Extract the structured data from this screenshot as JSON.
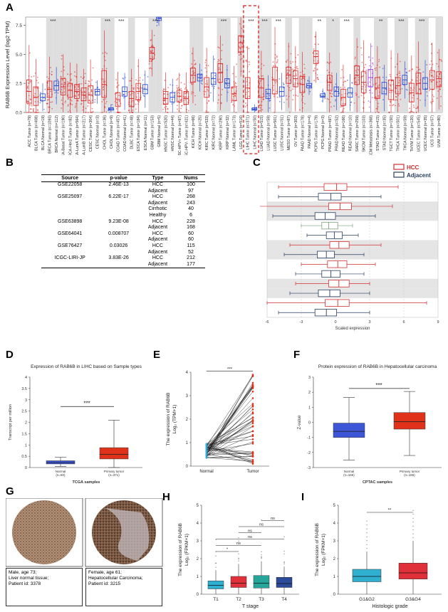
{
  "figure": {
    "panel_labels": {
      "A": "A",
      "B": "B",
      "C": "C",
      "D": "D",
      "E": "E",
      "F": "F",
      "G": "G",
      "H": "H",
      "I": "I"
    }
  },
  "panelA": {
    "ylabel": "RAB6B Expression Level (log2 TPM)",
    "yticks": [
      "0.0",
      "2.5",
      "5.0",
      "7.5"
    ],
    "categories": [
      "ACC Tumor (n=79)",
      "BLCA Tumor (n=408)",
      "BLCA Normal (n=19)",
      "BRCA Tumor (n=1093)",
      "BRCA Normal (n=112)",
      "BRCA-Basal Tumor (n=190)",
      "BRCA-Her2 Tumor (n=82)",
      "BRCA-LumA Tumor (n=564)",
      "BRCA-LumB Tumor (n=217)",
      "CESC Tumor (n=304)",
      "CESC Normal (n=3)",
      "CHOL Tumor (n=36)",
      "CHOL Normal (n=9)",
      "COAD Tumor (n=457)",
      "COAD Normal (n=41)",
      "DLBC Tumor (n=48)",
      "ESCA Tumor (n=184)",
      "ESCA Normal (n=11)",
      "GBM Tumor (n=153)",
      "GBM Normal (n=5)",
      "HNSC Tumor (n=520)",
      "HNSC Normal (n=44)",
      "HNSC-HPV+ Tumor (n=97)",
      "HNSC-HPV- Tumor (n=421)",
      "KICH Tumor (n=66)",
      "KICH Normal (n=25)",
      "KIRC Tumor (n=533)",
      "KIRC Normal (n=72)",
      "KIRP Tumor (n=290)",
      "KIRP Normal (n=32)",
      "LAML Tumor (n=173)",
      "LGG Tumor (n=516)",
      "LIHC Tumor (n=371)",
      "LIHC Normal (n=50)",
      "LUAD Tumor (n=515)",
      "LUAD Normal (n=59)",
      "LUSC Tumor (n=501)",
      "LUSC Normal (n=51)",
      "MESO Tumor (n=87)",
      "OV Tumor (n=303)",
      "PAAD Tumor (n=178)",
      "PAAD Normal (n=4)",
      "PCPG Tumor (n=179)",
      "PCPG Normal (n=3)",
      "PRAD Tumor (n=497)",
      "PRAD Normal (n=52)",
      "READ Tumor (n=166)",
      "READ Normal (n=10)",
      "SARC Tumor (n=259)",
      "SKCM Tumor (n=103)",
      "SKCM Metastasis (n=368)",
      "STAD Tumor (n=415)",
      "STAD Normal (n=35)",
      "TGCT Tumor (n=150)",
      "THCA Tumor (n=501)",
      "THCA Normal (n=59)",
      "THYM Tumor (n=120)",
      "UCEC Tumor (n=545)",
      "UCEC Normal (n=35)",
      "UCS Tumor (n=57)",
      "UVM Tumor (n=80)"
    ],
    "significance": [
      {
        "cat": "BRCA Tumor (n=1093)",
        "label": "***"
      },
      {
        "cat": "CHOL Tumor (n=36)",
        "label": "***"
      },
      {
        "cat": "COAD Tumor (n=457)",
        "label": "***"
      },
      {
        "cat": "GBM Tumor (n=153)",
        "label": "***"
      },
      {
        "cat": "KIRP Tumor (n=290)",
        "label": "***"
      },
      {
        "cat": "LIHC Tumor (n=371)",
        "label": "***"
      },
      {
        "cat": "LUAD Tumor (n=515)",
        "label": "***"
      },
      {
        "cat": "LUSC Tumor (n=501)",
        "label": "***"
      },
      {
        "cat": "PCPG Tumor (n=179)",
        "label": "**"
      },
      {
        "cat": "PRAD Tumor (n=497)",
        "label": "*"
      },
      {
        "cat": "READ Tumor (n=166)",
        "label": "***"
      },
      {
        "cat": "STAD Tumor (n=415)",
        "label": "**"
      },
      {
        "cat": "THCA Tumor (n=501)",
        "label": "***"
      },
      {
        "cat": "UCEC Tumor (n=545)",
        "label": "***"
      }
    ]
  },
  "panelB": {
    "headers": [
      "Source",
      "p-value",
      "Type",
      "Nums"
    ],
    "rows": [
      [
        "GSE22058",
        "2.46E-13",
        "HCC",
        "100"
      ],
      [
        "",
        "",
        "Adjacent",
        "97"
      ],
      [
        "GSE25097",
        "6.22E-17",
        "HCC",
        "268"
      ],
      [
        "",
        "",
        "Adjacent",
        "243"
      ],
      [
        "",
        "",
        "Cirrhotic",
        "40"
      ],
      [
        "",
        "",
        "Healthy",
        "6"
      ],
      [
        "GSE63898",
        "9.23E-08",
        "HCC",
        "228"
      ],
      [
        "",
        "",
        "Adjacent",
        "168"
      ],
      [
        "GSE64041",
        "0.008707",
        "HCC",
        "60"
      ],
      [
        "",
        "",
        "Adjacent",
        "60"
      ],
      [
        "GSE76427",
        "0.03026",
        "HCC",
        "115"
      ],
      [
        "",
        "",
        "Adjacent",
        "52"
      ],
      [
        "ICGC-LIRI-JP",
        "3.83E-26",
        "HCC",
        "212"
      ],
      [
        "",
        "",
        "Adjacent",
        "177"
      ]
    ]
  },
  "panelC": {
    "legend": [
      "HCC",
      "Adjacent"
    ],
    "xlabel": "Scaled expression",
    "xticks": [
      "-6",
      "-3",
      "0",
      "3",
      "6",
      "9"
    ]
  },
  "panelD": {
    "title": "Expression of RAB6B in LIHC based on Sample types",
    "ylabel": "Transcript per million",
    "xlabel": "TCGA samples",
    "yticks": [
      "0",
      "0.5",
      "1",
      "1.5",
      "2",
      "2.5",
      "3",
      "3.5",
      "4"
    ],
    "groups": [
      "Normal",
      "Primary tumor"
    ],
    "counts": [
      "(n=50)",
      "(n=371)"
    ],
    "sig": "***"
  },
  "panelE": {
    "ylabel1": "The expression of RAB6B",
    "ylabel2": "Log₂ (TPM+1)",
    "yticks": [
      "0",
      "1",
      "2",
      "3",
      "4"
    ],
    "groups": [
      "Normal",
      "Tumor"
    ],
    "sig": "***"
  },
  "panelF": {
    "title": "Protein expression of RAB6B in Hepatocellular carcinoma",
    "ylabel": "Z-value",
    "xlabel": "CPTAC samples",
    "yticks": [
      "3",
      "2",
      "1",
      "0",
      "-1",
      "-2",
      "-3"
    ],
    "groups": [
      "Normal",
      "Primary tumor"
    ],
    "counts": [
      "(n=165)",
      "(n=165)"
    ],
    "sig": "***"
  },
  "panelG": {
    "captions": [
      [
        "Male, age 73;",
        "Liver normal tissue;",
        "Patient id: 3378"
      ],
      [
        "Female, age 61;",
        "Hepatocellular Carcinoma;",
        "Patient id: 3215"
      ]
    ]
  },
  "panelH": {
    "ylabel1": "The expression of RAB6B",
    "ylabel2": "Log₂ (FPKM+1)",
    "xlabel": "T stage",
    "yticks": [
      "0",
      "1",
      "2",
      "3",
      "4",
      "5"
    ],
    "groups": [
      "T1",
      "T2",
      "T3",
      "T4"
    ],
    "brackets": [
      "*",
      "ns",
      "ns",
      "ns",
      "ns",
      "ns"
    ]
  },
  "panelI": {
    "ylabel1": "The expression of RAB6B",
    "ylabel2": "Log₂ (FPKM+1)",
    "xlabel": "Histologic grade",
    "yticks": [
      "0",
      "1",
      "2",
      "3",
      "4",
      "5"
    ],
    "groups": [
      "G1&G2",
      "G3&G4"
    ],
    "sig": "**"
  },
  "chart_data": [
    {
      "type": "box",
      "panel": "A",
      "title": "",
      "ylabel": "RAB6B Expression Level (log2 TPM)",
      "ylim": [
        0,
        8.2
      ],
      "categories": [
        "ACC Tumor (n=79)",
        "BLCA Tumor (n=408)",
        "BLCA Normal (n=19)",
        "BRCA Tumor (n=1093)",
        "BRCA Normal (n=112)",
        "BRCA-Basal Tumor (n=190)",
        "BRCA-Her2 Tumor (n=82)",
        "BRCA-LumA Tumor (n=564)",
        "BRCA-LumB Tumor (n=217)",
        "CESC Tumor (n=304)",
        "CESC Normal (n=3)",
        "CHOL Tumor (n=36)",
        "CHOL Normal (n=9)",
        "COAD Tumor (n=457)",
        "COAD Normal (n=41)",
        "DLBC Tumor (n=48)",
        "ESCA Tumor (n=184)",
        "ESCA Normal (n=11)",
        "GBM Tumor (n=153)",
        "GBM Normal (n=5)",
        "HNSC Tumor (n=520)",
        "HNSC Normal (n=44)",
        "HNSC-HPV+ Tumor (n=97)",
        "HNSC-HPV- Tumor (n=421)",
        "KICH Tumor (n=66)",
        "KICH Normal (n=25)",
        "KIRC Tumor (n=533)",
        "KIRC Normal (n=72)",
        "KIRP Tumor (n=290)",
        "KIRP Normal (n=32)",
        "LAML Tumor (n=173)",
        "LGG Tumor (n=516)",
        "LIHC Tumor (n=371)",
        "LIHC Normal (n=50)",
        "LUAD Tumor (n=515)",
        "LUAD Normal (n=59)",
        "LUSC Tumor (n=501)",
        "LUSC Normal (n=51)",
        "MESO Tumor (n=87)",
        "OV Tumor (n=303)",
        "PAAD Tumor (n=178)",
        "PAAD Normal (n=4)",
        "PCPG Tumor (n=179)",
        "PCPG Normal (n=3)",
        "PRAD Tumor (n=497)",
        "PRAD Normal (n=52)",
        "READ Tumor (n=166)",
        "READ Normal (n=10)",
        "SARC Tumor (n=259)",
        "SKCM Tumor (n=103)",
        "SKCM Metastasis (n=368)",
        "STAD Tumor (n=415)",
        "STAD Normal (n=35)",
        "TGCT Tumor (n=150)",
        "THCA Tumor (n=501)",
        "THCA Normal (n=59)",
        "THYM Tumor (n=120)",
        "UCEC Tumor (n=545)",
        "UCEC Normal (n=35)",
        "UCS Tumor (n=57)",
        "UVM Tumor (n=80)"
      ],
      "boxes": [
        [
          0.8,
          1.8,
          2.8
        ],
        [
          0.6,
          1.3,
          2.2
        ],
        [
          1.0,
          1.3,
          1.6
        ],
        [
          1.3,
          2.0,
          2.7
        ],
        [
          1.9,
          2.3,
          2.7
        ],
        [
          1.5,
          2.2,
          2.9
        ],
        [
          1.3,
          1.9,
          2.5
        ],
        [
          1.2,
          1.8,
          2.4
        ],
        [
          1.0,
          1.5,
          2.1
        ],
        [
          0.8,
          1.5,
          2.3
        ],
        [
          1.5,
          1.8,
          2.0
        ],
        [
          1.3,
          2.4,
          3.6
        ],
        [
          0.2,
          0.3,
          0.4
        ],
        [
          0.5,
          1.1,
          1.7
        ],
        [
          1.4,
          1.8,
          2.2
        ],
        [
          0.5,
          1.2,
          1.8
        ],
        [
          1.1,
          1.8,
          2.5
        ],
        [
          1.6,
          2.0,
          2.4
        ],
        [
          4.6,
          5.1,
          5.6
        ],
        [
          7.9,
          8.1,
          8.2
        ],
        [
          0.7,
          1.2,
          1.8
        ],
        [
          0.9,
          1.3,
          1.7
        ],
        [
          0.9,
          1.4,
          1.9
        ],
        [
          0.7,
          1.2,
          1.8
        ],
        [
          2.6,
          3.2,
          3.8
        ],
        [
          2.7,
          3.0,
          3.3
        ],
        [
          1.3,
          2.2,
          3.0
        ],
        [
          2.4,
          2.9,
          3.4
        ],
        [
          2.6,
          3.4,
          4.2
        ],
        [
          2.1,
          2.5,
          2.9
        ],
        [
          1.0,
          1.6,
          2.2
        ],
        [
          5.2,
          6.0,
          6.6
        ],
        [
          1.2,
          2.1,
          3.0
        ],
        [
          0.2,
          0.3,
          0.4
        ],
        [
          1.3,
          2.1,
          2.9
        ],
        [
          1.2,
          1.6,
          2.0
        ],
        [
          1.6,
          2.8,
          3.9
        ],
        [
          1.4,
          1.8,
          2.2
        ],
        [
          2.5,
          3.2,
          3.9
        ],
        [
          2.2,
          2.9,
          3.6
        ],
        [
          1.7,
          2.4,
          3.1
        ],
        [
          2.1,
          2.3,
          2.5
        ],
        [
          4.2,
          4.8,
          5.3
        ],
        [
          1.3,
          1.4,
          1.6
        ],
        [
          1.9,
          2.6,
          3.2
        ],
        [
          1.4,
          1.8,
          2.2
        ],
        [
          0.6,
          1.3,
          2.0
        ],
        [
          1.3,
          1.7,
          2.1
        ],
        [
          2.4,
          3.2,
          4.0
        ],
        [
          1.7,
          2.6,
          3.5
        ],
        [
          2.2,
          3.0,
          3.7
        ],
        [
          1.2,
          2.1,
          3.0
        ],
        [
          1.6,
          2.1,
          2.6
        ],
        [
          1.1,
          1.9,
          2.8
        ],
        [
          1.6,
          2.3,
          3.0
        ],
        [
          2.4,
          2.8,
          3.2
        ],
        [
          0.9,
          1.7,
          2.5
        ],
        [
          1.6,
          2.5,
          3.4
        ],
        [
          2.0,
          2.5,
          3.0
        ],
        [
          2.0,
          2.8,
          3.6
        ],
        [
          2.2,
          2.9,
          3.5
        ]
      ]
    },
    {
      "type": "box",
      "panel": "D",
      "title": "Expression of RAB6B in LIHC based on Sample types",
      "ylabel": "Transcript per million",
      "xlabel": "TCGA samples",
      "categories": [
        "Normal",
        "Primary tumor"
      ],
      "ylim": [
        0,
        4
      ],
      "min": [
        0.05,
        0.0
      ],
      "q1": [
        0.16,
        0.38
      ],
      "median": [
        0.22,
        0.58
      ],
      "q3": [
        0.3,
        0.88
      ],
      "max": [
        0.45,
        2.1
      ]
    },
    {
      "type": "paired-line",
      "panel": "E",
      "ylabel": "The expression of RAB6B Log2 (TPM+1)",
      "categories": [
        "Normal",
        "Tumor"
      ],
      "ylim": [
        0,
        4
      ],
      "normal_range": [
        0.35,
        0.95
      ],
      "tumor_range": [
        0.1,
        3.9
      ]
    },
    {
      "type": "box",
      "panel": "F",
      "title": "Protein expression of RAB6B in Hepatocellular carcinoma",
      "ylabel": "Z-value",
      "xlabel": "CPTAC samples",
      "categories": [
        "Normal",
        "Primary tumor"
      ],
      "ylim": [
        -3,
        3
      ],
      "min": [
        -2.5,
        -2.2
      ],
      "q1": [
        -1.0,
        -0.45
      ],
      "median": [
        -0.6,
        0.05
      ],
      "q3": [
        -0.05,
        0.65
      ],
      "max": [
        1.65,
        2.05
      ]
    },
    {
      "type": "box",
      "panel": "H",
      "ylabel": "The expression of RAB6B Log2 (FPKM+1)",
      "xlabel": "T stage",
      "categories": [
        "T1",
        "T2",
        "T3",
        "T4"
      ],
      "ylim": [
        0,
        5
      ],
      "min": [
        0.0,
        0.0,
        0.0,
        0.0
      ],
      "q1": [
        0.3,
        0.38,
        0.35,
        0.38
      ],
      "median": [
        0.5,
        0.62,
        0.62,
        0.6
      ],
      "q3": [
        0.75,
        1.0,
        1.05,
        0.95
      ],
      "max": [
        1.35,
        1.7,
        1.85,
        1.55
      ]
    },
    {
      "type": "box",
      "panel": "I",
      "ylabel": "The expression of RAB6B Log2 (FPKM+1)",
      "xlabel": "Histologic grade",
      "categories": [
        "G1&G2",
        "G3&G4"
      ],
      "ylim": [
        0,
        5
      ],
      "min": [
        0.0,
        0.0
      ],
      "q1": [
        0.7,
        0.85
      ],
      "median": [
        1.0,
        1.2
      ],
      "q3": [
        1.4,
        1.75
      ],
      "max": [
        2.4,
        3.0
      ]
    }
  ]
}
